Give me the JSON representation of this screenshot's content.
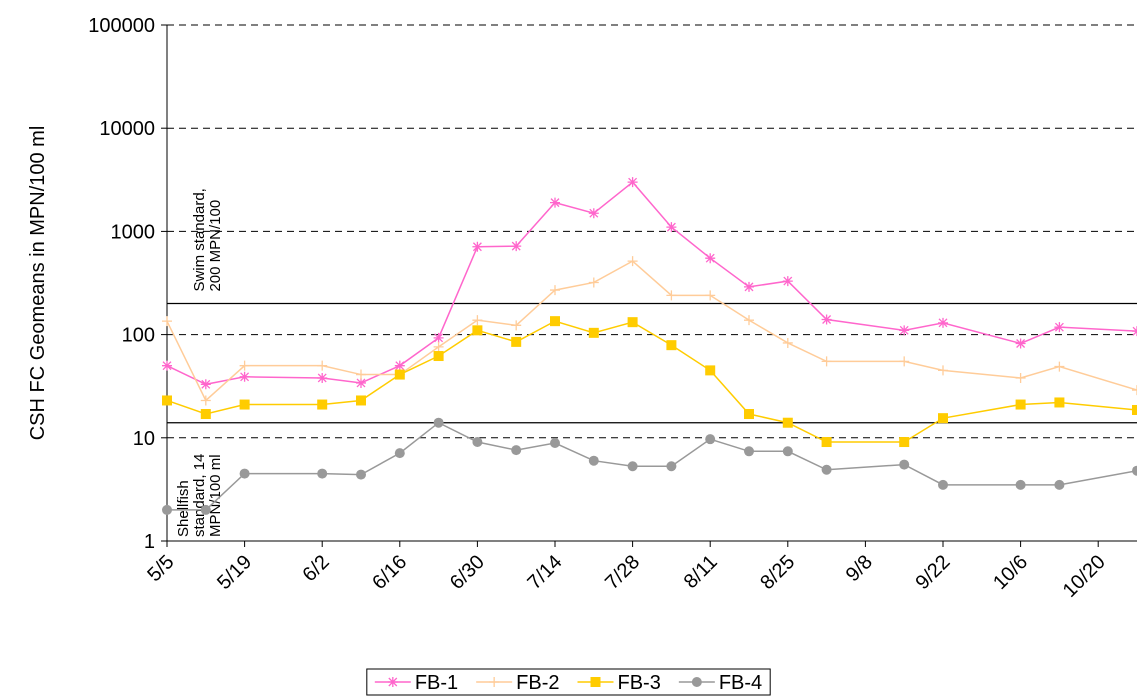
{
  "chart_data": {
    "type": "line",
    "y_label": "CSH FC Geomeans in MPN/100 ml",
    "y_log": true,
    "ylim": [
      1,
      100000
    ],
    "yticks": [
      1,
      10,
      100,
      1000,
      10000,
      100000
    ],
    "grid": true,
    "xlim": [
      "5/5",
      "10/27"
    ],
    "xticks": [
      "5/5",
      "5/19",
      "6/2",
      "6/16",
      "6/30",
      "7/14",
      "7/28",
      "8/11",
      "8/25",
      "9/8",
      "9/22",
      "10/6",
      "10/20"
    ],
    "legend": "bottom",
    "reference_lines": [
      {
        "value": 200,
        "label": [
          "Swim standard,",
          "200 MPN/100"
        ]
      },
      {
        "value": 14,
        "label": [
          "Shellfish",
          "standard, 14",
          "MPN/100 ml"
        ]
      }
    ],
    "series": [
      {
        "name": "FB-1",
        "color": "#ff66cc",
        "marker": "asterisk",
        "x": [
          "5/5",
          "5/12",
          "5/19",
          "6/2",
          "6/9",
          "6/16",
          "6/23",
          "6/30",
          "7/7",
          "7/14",
          "7/21",
          "7/28",
          "8/4",
          "8/11",
          "8/18",
          "8/25",
          "9/1",
          "9/15",
          "9/22",
          "10/6",
          "10/13",
          "10/27"
        ],
        "values": [
          50,
          33,
          39,
          38,
          34,
          50,
          93,
          710,
          720,
          1900,
          1500,
          3000,
          1100,
          550,
          290,
          330,
          140,
          110,
          130,
          82,
          118,
          108
        ]
      },
      {
        "name": "FB-2",
        "color": "#ffcc99",
        "marker": "plus",
        "x": [
          "5/5",
          "5/12",
          "5/19",
          "6/2",
          "6/9",
          "6/16",
          "6/23",
          "6/30",
          "7/7",
          "7/14",
          "7/21",
          "7/28",
          "8/4",
          "8/11",
          "8/18",
          "8/25",
          "9/1",
          "9/15",
          "9/22",
          "10/6",
          "10/13",
          "10/27"
        ],
        "values": [
          135,
          23,
          50,
          50,
          41,
          41,
          76,
          138,
          123,
          270,
          320,
          515,
          240,
          240,
          138,
          83,
          55,
          55,
          45,
          38,
          49,
          29
        ]
      },
      {
        "name": "FB-3",
        "color": "#ffcc00",
        "marker": "square",
        "x": [
          "5/5",
          "5/12",
          "5/19",
          "6/2",
          "6/9",
          "6/16",
          "6/23",
          "6/30",
          "7/7",
          "7/14",
          "7/21",
          "7/28",
          "8/4",
          "8/11",
          "8/18",
          "8/25",
          "9/1",
          "9/15",
          "9/22",
          "10/6",
          "10/13",
          "10/27"
        ],
        "values": [
          23,
          17,
          21,
          21,
          23,
          41,
          62,
          110,
          85,
          135,
          104,
          132,
          79,
          45,
          17,
          14,
          9.1,
          9.1,
          15.5,
          21,
          22,
          18.6
        ]
      },
      {
        "name": "FB-4",
        "color": "#999999",
        "marker": "circle",
        "x": [
          "5/5",
          "5/12",
          "5/19",
          "6/2",
          "6/9",
          "6/16",
          "6/23",
          "6/30",
          "7/7",
          "7/14",
          "7/21",
          "7/28",
          "8/4",
          "8/11",
          "8/18",
          "8/25",
          "9/1",
          "9/15",
          "9/22",
          "10/6",
          "10/13",
          "10/27"
        ],
        "values": [
          2.0,
          2.0,
          4.5,
          4.5,
          4.4,
          7.1,
          14,
          9.1,
          7.6,
          8.9,
          6.0,
          5.3,
          5.3,
          9.7,
          7.4,
          7.4,
          4.9,
          5.5,
          3.5,
          3.5,
          3.5,
          4.8
        ]
      }
    ]
  }
}
